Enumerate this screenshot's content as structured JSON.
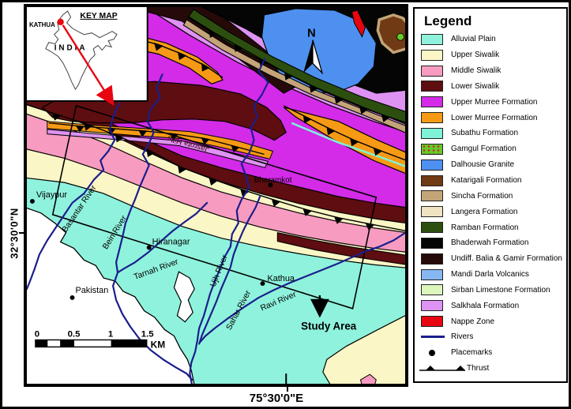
{
  "key_map": {
    "title": "KEY MAP",
    "city": "KATHUA",
    "country": "INDIA"
  },
  "axes": {
    "latitude": "32°30'0\"N",
    "longitude": "75°30'0\"E"
  },
  "compass_north": "N",
  "scale_bar": {
    "ticks": [
      "0",
      "0.5",
      "1",
      "1.5"
    ],
    "unit": "KM"
  },
  "study_area_label": "Study Area",
  "places": [
    "Vijaypur",
    "Hiranagar",
    "Kathua",
    "Pakistan",
    "Bharamkot"
  ],
  "rivers": [
    "Basantar River",
    "Bein River",
    "Tarnah River",
    "Ujh River",
    "Sahar River",
    "Ravi River"
  ],
  "terrain_labels": {
    "jasrota": "Jasrota Hills",
    "partial_ur": "ur"
  },
  "colors": {
    "river": "#1A1E8C",
    "nappe_red": "#E80510",
    "arrow_red": "#E80510"
  },
  "legend": {
    "title": "Legend",
    "items": [
      {
        "label": "Alluvial Plain",
        "color": "#8FF2DC",
        "type": "fill"
      },
      {
        "label": "Upper Siwalik",
        "color": "#FBF6C5",
        "type": "fill"
      },
      {
        "label": "Middle Siwalik",
        "color": "#F79BC0",
        "type": "fill"
      },
      {
        "label": "Lower Siwalik",
        "color": "#5E0D10",
        "type": "fill"
      },
      {
        "label": "Upper Murree Formation",
        "color": "#D32BE8",
        "type": "fill"
      },
      {
        "label": "Lower Murree Formation",
        "color": "#F69A15",
        "type": "fill"
      },
      {
        "label": "Subathu Formation",
        "color": "#7FF2D8",
        "type": "fill"
      },
      {
        "label": "Gamgul Formation",
        "color": "#62CC29",
        "type": "dots",
        "dot_color": "#E02020"
      },
      {
        "label": "Dalhousie Granite",
        "color": "#4E90F0",
        "type": "fill"
      },
      {
        "label": "Katarigali Formation",
        "color": "#6F3A14",
        "type": "fill"
      },
      {
        "label": "Sincha Formation",
        "color": "#C4A478",
        "type": "fill"
      },
      {
        "label": "Langera Formation",
        "color": "#EFE3C1",
        "type": "fill"
      },
      {
        "label": "Ramban Formation",
        "color": "#2C4F10",
        "type": "fill"
      },
      {
        "label": "Bhaderwah Formation",
        "color": "#050505",
        "type": "fill"
      },
      {
        "label": "Undiff. Balia & Gamir Formation",
        "color": "#260A0A",
        "type": "fill"
      },
      {
        "label": "Mandi Darla Volcanics",
        "color": "#87B7F2",
        "type": "fill"
      },
      {
        "label": "Sirban Limestone Formation",
        "color": "#DCF6BC",
        "type": "fill"
      },
      {
        "label": "Salkhala Formation",
        "color": "#DE92F2",
        "type": "fill"
      },
      {
        "label": "Nappe Zone",
        "color": "#E80510",
        "type": "fill"
      },
      {
        "label": "Rivers",
        "color": "#1A1E8C",
        "type": "river"
      },
      {
        "label": "Placemarks",
        "color": "#000000",
        "type": "placemark"
      },
      {
        "label": "Thrust",
        "color": "#000000",
        "type": "thrust"
      }
    ]
  }
}
